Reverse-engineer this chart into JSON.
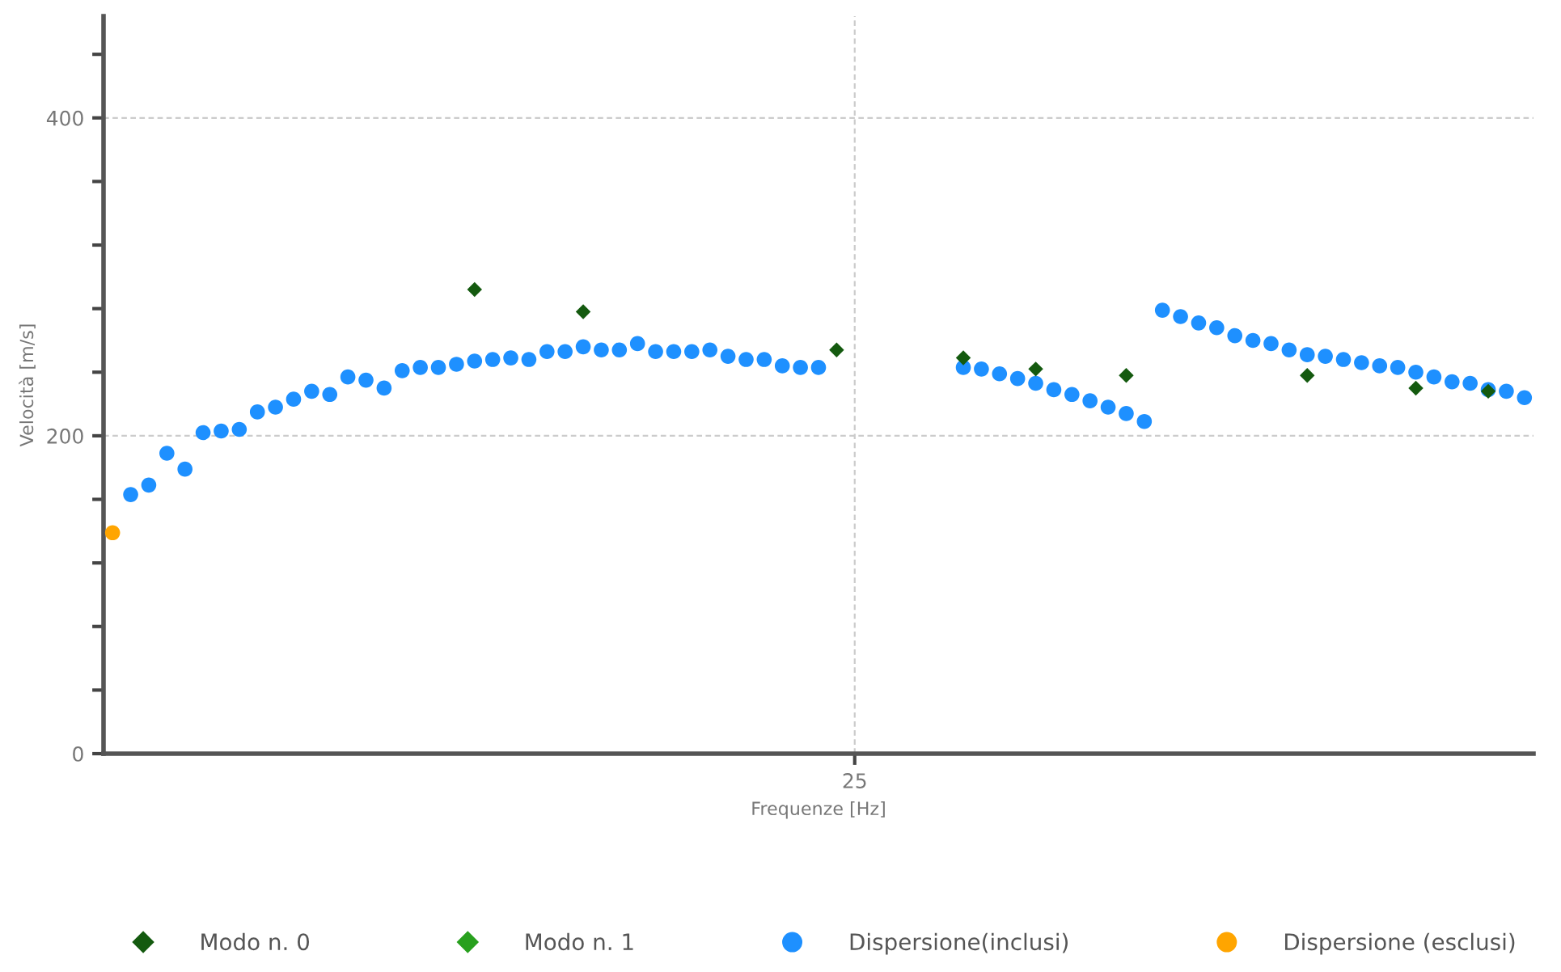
{
  "chart_data": {
    "type": "scatter",
    "xlabel": "Frequenze [Hz]",
    "ylabel": "Velocità [m/s]",
    "categories": [
      null,
      null,
      null,
      null,
      null,
      null,
      null,
      null,
      null,
      null,
      null,
      null,
      null,
      null,
      null,
      null,
      null,
      null,
      null,
      null,
      null,
      null,
      null,
      null,
      null,
      null,
      null,
      null,
      null,
      null,
      null,
      null,
      null,
      null,
      null,
      null,
      null,
      null,
      null,
      null,
      null,
      "25",
      null,
      null,
      null,
      null,
      null,
      null,
      null,
      null,
      null,
      null,
      null,
      null,
      null,
      null,
      null,
      null,
      null,
      null,
      null,
      null,
      null,
      null,
      null,
      null,
      null,
      null,
      null,
      null,
      null,
      null,
      null,
      null,
      null,
      null,
      null,
      null,
      null
    ],
    "ylim": [
      0,
      464
    ],
    "yticks": [
      {
        "value": 0,
        "label": "0"
      },
      {
        "value": 40,
        "label": null
      },
      {
        "value": 80,
        "label": null
      },
      {
        "value": 120,
        "label": null
      },
      {
        "value": 160,
        "label": null
      },
      {
        "value": 200,
        "label": "200"
      },
      {
        "value": 240,
        "label": null
      },
      {
        "value": 280,
        "label": null
      },
      {
        "value": 320,
        "label": null
      },
      {
        "value": 360,
        "label": null
      },
      {
        "value": 400,
        "label": "400"
      },
      {
        "value": 440,
        "label": null
      }
    ],
    "grid": true,
    "legend": "bottom",
    "series": [
      {
        "name": "Modo n. 0",
        "color": "#145a0f",
        "marker": "diamond",
        "values": [
          null,
          null,
          null,
          null,
          null,
          null,
          null,
          null,
          null,
          null,
          null,
          null,
          null,
          null,
          null,
          null,
          null,
          null,
          null,
          null,
          292,
          null,
          null,
          null,
          null,
          null,
          278,
          null,
          null,
          null,
          null,
          null,
          null,
          null,
          null,
          null,
          null,
          null,
          null,
          null,
          254,
          null,
          null,
          null,
          null,
          null,
          null,
          249,
          null,
          null,
          null,
          242,
          null,
          null,
          null,
          null,
          238,
          null,
          null,
          null,
          null,
          null,
          null,
          null,
          null,
          null,
          238,
          null,
          null,
          null,
          null,
          null,
          230,
          null,
          null,
          null,
          228,
          null,
          null
        ]
      },
      {
        "name": "Modo n. 1",
        "color": "#28a01e",
        "marker": "diamond",
        "values": [
          null,
          null,
          null,
          null,
          null,
          null,
          null,
          null,
          null,
          null,
          null,
          null,
          null,
          null,
          null,
          null,
          null,
          null,
          null,
          null,
          null,
          null,
          null,
          null,
          null,
          null,
          null,
          null,
          null,
          null,
          null,
          null,
          null,
          null,
          null,
          null,
          null,
          null,
          null,
          null,
          null,
          null,
          null,
          null,
          null,
          null,
          null,
          null,
          null,
          null,
          null,
          null,
          null,
          null,
          null,
          null,
          null,
          null,
          null,
          null,
          null,
          null,
          null,
          null,
          null,
          null,
          null,
          null,
          null,
          null,
          null,
          null,
          null,
          null,
          null,
          null,
          null,
          null,
          null
        ]
      },
      {
        "name": "Dispersione(inclusi)",
        "color": "#1e90ff",
        "marker": "circle",
        "values": [
          null,
          163,
          169,
          189,
          179,
          202,
          203,
          204,
          215,
          218,
          223,
          228,
          226,
          237,
          235,
          230,
          241,
          243,
          243,
          245,
          247,
          248,
          249,
          248,
          253,
          253,
          256,
          254,
          254,
          258,
          253,
          253,
          253,
          254,
          250,
          248,
          248,
          244,
          243,
          243,
          null,
          null,
          null,
          null,
          null,
          null,
          null,
          243,
          242,
          239,
          236,
          233,
          229,
          226,
          222,
          218,
          214,
          209,
          279,
          275,
          271,
          268,
          263,
          260,
          258,
          254,
          251,
          250,
          248,
          246,
          244,
          243,
          240,
          237,
          234,
          233,
          229,
          228,
          224
        ]
      },
      {
        "name": "Dispersione (esclusi)",
        "color": "#ffa500",
        "marker": "circle",
        "values": [
          139,
          null,
          null,
          null,
          null,
          null,
          null,
          null,
          null,
          null,
          null,
          null,
          null,
          null,
          null,
          null,
          null,
          null,
          null,
          null,
          null,
          null,
          null,
          null,
          null,
          null,
          null,
          null,
          null,
          null,
          null,
          null,
          null,
          null,
          null,
          null,
          null,
          null,
          null,
          null,
          null,
          null,
          null,
          null,
          null,
          null,
          null,
          null,
          null,
          null,
          null,
          null,
          null,
          null,
          null,
          null,
          null,
          null,
          null,
          null,
          null,
          null,
          null,
          null,
          null,
          null,
          null,
          null,
          null,
          null,
          null,
          null,
          null,
          null,
          null,
          null,
          null,
          null,
          null
        ]
      }
    ]
  }
}
